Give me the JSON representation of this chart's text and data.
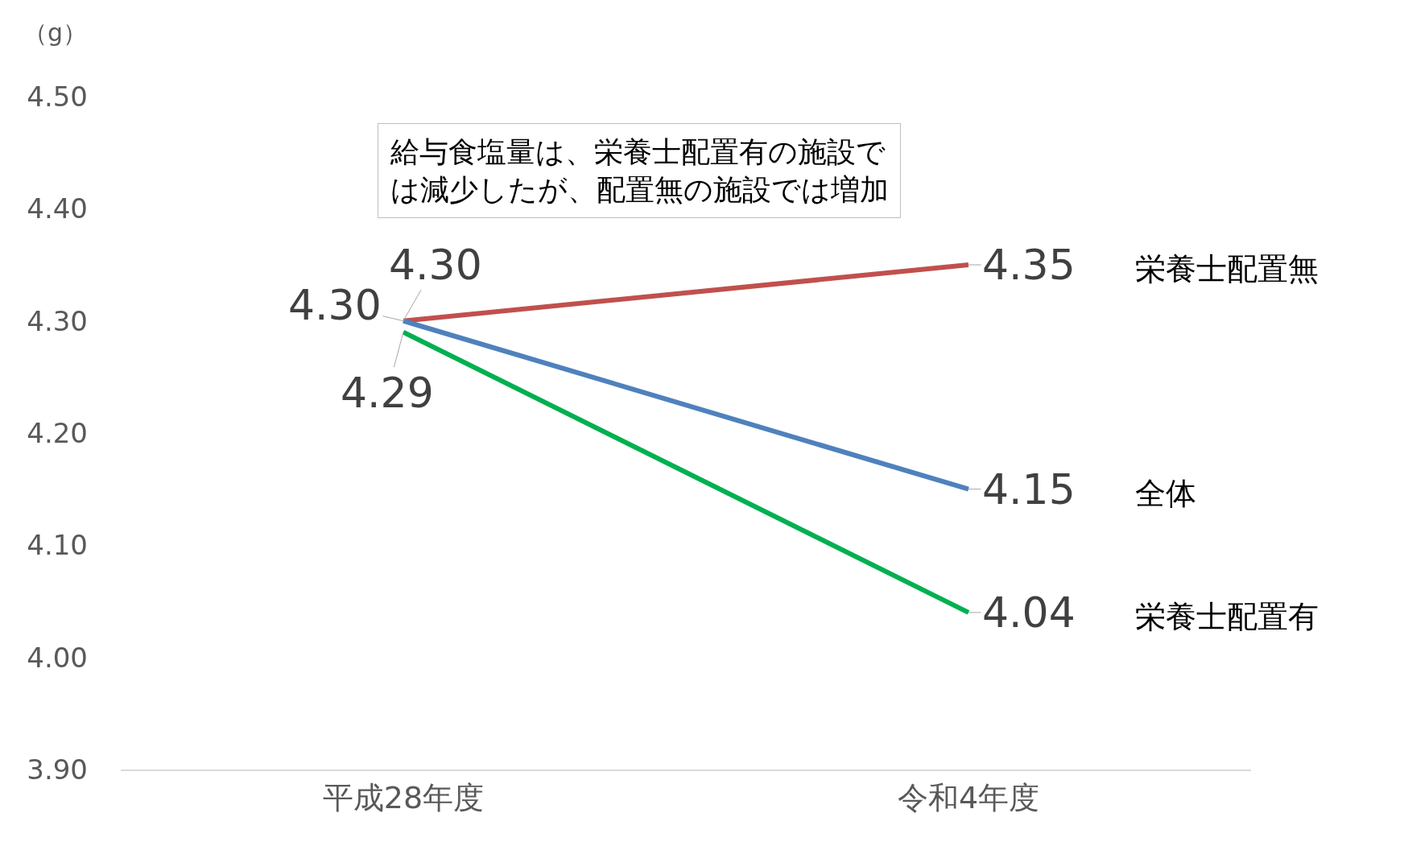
{
  "chart_data": {
    "type": "line",
    "ylabel": "（g）",
    "categories": [
      "平成28年度",
      "令和4年度"
    ],
    "series": [
      {
        "name": "栄養士配置無",
        "color": "#c0504d",
        "values": [
          4.3,
          4.35
        ],
        "value_labels": [
          "4.30",
          "4.35"
        ]
      },
      {
        "name": "全体",
        "color": "#4f81bd",
        "values": [
          4.3,
          4.15
        ],
        "value_labels": [
          "4.30",
          "4.15"
        ]
      },
      {
        "name": "栄養士配置有",
        "color": "#00b050",
        "values": [
          4.29,
          4.04
        ],
        "value_labels": [
          "4.29",
          "4.04"
        ]
      }
    ],
    "ylim": [
      3.9,
      4.5
    ],
    "yticks": [
      {
        "value": 3.9,
        "label": "3.90"
      },
      {
        "value": 4.0,
        "label": "4.00"
      },
      {
        "value": 4.1,
        "label": "4.10"
      },
      {
        "value": 4.2,
        "label": "4.20"
      },
      {
        "value": 4.3,
        "label": "4.30"
      },
      {
        "value": 4.4,
        "label": "4.40"
      },
      {
        "value": 4.5,
        "label": "4.50"
      }
    ],
    "annotations": [
      "給与食塩量は、栄養士配置有の施設では減少したが、配置無の施設では増加"
    ],
    "legend": false,
    "marker": "none",
    "line_style": "solid"
  }
}
